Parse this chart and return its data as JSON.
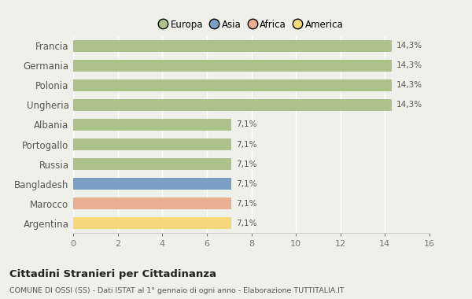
{
  "categories": [
    "Francia",
    "Germania",
    "Polonia",
    "Ungheria",
    "Albania",
    "Portogallo",
    "Russia",
    "Bangladesh",
    "Marocco",
    "Argentina"
  ],
  "values": [
    14.3,
    14.3,
    14.3,
    14.3,
    7.1,
    7.1,
    7.1,
    7.1,
    7.1,
    7.1
  ],
  "labels": [
    "14,3%",
    "14,3%",
    "14,3%",
    "14,3%",
    "7,1%",
    "7,1%",
    "7,1%",
    "7,1%",
    "7,1%",
    "7,1%"
  ],
  "bar_colors": [
    "#adc18a",
    "#adc18a",
    "#adc18a",
    "#adc18a",
    "#adc18a",
    "#adc18a",
    "#adc18a",
    "#7b9fc4",
    "#e8b090",
    "#f5d878"
  ],
  "legend_labels": [
    "Europa",
    "Asia",
    "Africa",
    "America"
  ],
  "legend_colors": [
    "#adc18a",
    "#7b9fc4",
    "#e8b090",
    "#f5d878"
  ],
  "xlim": [
    0,
    16
  ],
  "xticks": [
    0,
    2,
    4,
    6,
    8,
    10,
    12,
    14,
    16
  ],
  "title": "Cittadini Stranieri per Cittadinanza",
  "subtitle": "COMUNE DI OSSI (SS) - Dati ISTAT al 1° gennaio di ogni anno - Elaborazione TUTTITALIA.IT",
  "background_color": "#f0f0ea",
  "grid_color": "#ffffff",
  "bar_height": 0.6,
  "label_fontsize": 7.5,
  "ytick_fontsize": 8.5,
  "xtick_fontsize": 8
}
